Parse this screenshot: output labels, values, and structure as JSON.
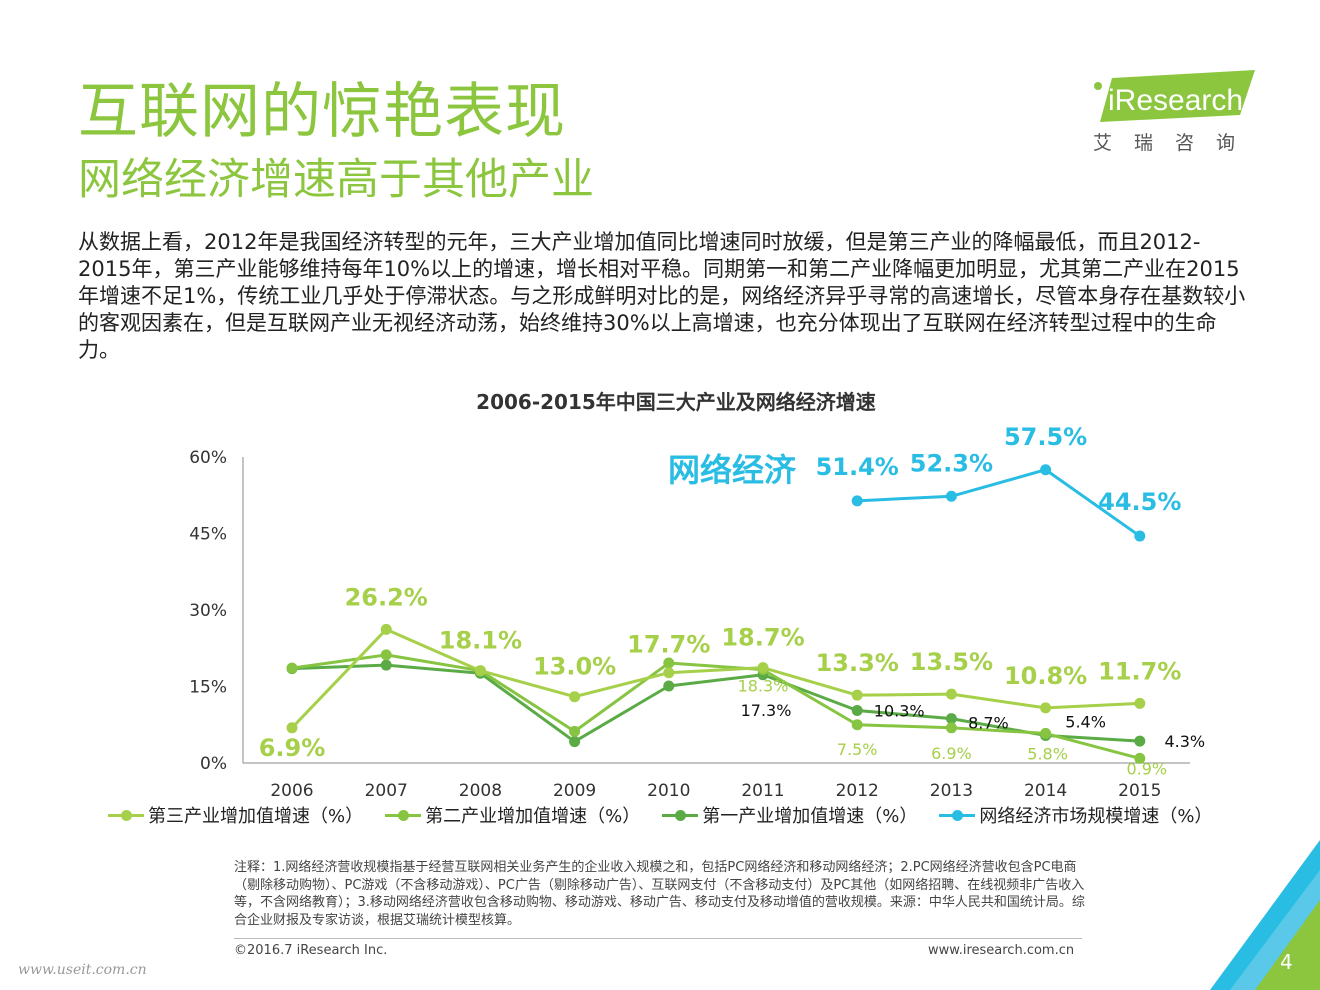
{
  "header": {
    "title": "互联网的惊艳表现",
    "subtitle": "网络经济增速高于其他产业"
  },
  "logo": {
    "text": "iResearch",
    "sub": "艾瑞咨询"
  },
  "intro": "从数据上看，2012年是我国经济转型的元年，三大产业增加值同比增速同时放缓，但是第三产业的降幅最低，而且2012-2015年，第三产业能够维持每年10%以上的增速，增长相对平稳。同期第一和第二产业降幅更加明显，尤其第二产业在2015年增速不足1%，传统工业几乎处于停滞状态。与之形成鲜明对比的是，网络经济异乎寻常的高速增长，尽管本身存在基数较小的客观因素在，但是互联网产业无视经济动荡，始终维持30%以上高增速，也充分体现出了互联网在经济转型过程中的生命力。",
  "chart_data": {
    "type": "line",
    "title": "2006-2015年中国三大产业及网络经济增速",
    "categories": [
      "2006",
      "2007",
      "2008",
      "2009",
      "2010",
      "2011",
      "2012",
      "2013",
      "2014",
      "2015"
    ],
    "yticks": [
      "0%",
      "15%",
      "30%",
      "45%",
      "60%"
    ],
    "ylim": [
      0,
      60
    ],
    "series": [
      {
        "name": "第三产业增加值增速（%）",
        "color": "#a6d04a",
        "values": [
          6.9,
          26.2,
          18.1,
          13.0,
          17.7,
          18.7,
          13.3,
          13.5,
          10.8,
          11.7
        ],
        "labels": [
          "6.9%",
          "26.2%",
          "18.1%",
          "13.0%",
          "17.7%",
          "18.7%",
          "13.3%",
          "13.5%",
          "10.8%",
          "11.7%"
        ]
      },
      {
        "name": "第二产业增加值增速（%）",
        "color": "#86c441",
        "values": [
          18.6,
          21.2,
          18.1,
          6.2,
          19.6,
          18.3,
          7.5,
          6.9,
          5.8,
          0.9
        ],
        "labels": [
          "",
          "",
          "",
          "",
          "",
          "18.3%",
          "7.5%",
          "6.9%",
          "5.8%",
          "0.9%"
        ]
      },
      {
        "name": "第一产业增加值增速（%）",
        "color": "#5aab46",
        "values": [
          18.5,
          19.2,
          17.6,
          4.2,
          15.1,
          17.3,
          10.3,
          8.7,
          5.4,
          4.3
        ],
        "labels": [
          "",
          "",
          "",
          "",
          "",
          "17.3%",
          "10.3%",
          "8.7%",
          "5.4%",
          "4.3%"
        ]
      },
      {
        "name": "网络经济市场规模增速（%）",
        "color": "#29bde4",
        "values": [
          null,
          null,
          null,
          null,
          null,
          null,
          51.4,
          52.3,
          57.5,
          44.5
        ],
        "labels": [
          "",
          "",
          "",
          "",
          "",
          "",
          "51.4%",
          "52.3%",
          "57.5%",
          "44.5%"
        ]
      }
    ],
    "annotation": "网络经济"
  },
  "note": "注释：1.网络经济营收规模指基于经营互联网相关业务产生的企业收入规模之和，包括PC网络经济和移动网络经济；2.PC网络经济营收包含PC电商（剔除移动购物）、PC游戏（不含移动游戏）、PC广告（剔除移动广告）、互联网支付（不含移动支付）及PC其他（如网络招聘、在线视频非广告收入等，不含网络教育）；3.移动网络经济营收包含移动购物、移动游戏、移动广告、移动支付及移动增值的营收规模。来源：中华人民共和国统计局。综合企业财报及专家访谈，根据艾瑞统计模型核算。",
  "footer": {
    "copyright": "©2016.7 iResearch Inc.",
    "website": "www.iresearch.com.cn",
    "watermark": "www.useit.com.cn",
    "page": "4"
  },
  "colors": {
    "brand_green": "#8cc63f",
    "internet_blue": "#29bde4"
  }
}
